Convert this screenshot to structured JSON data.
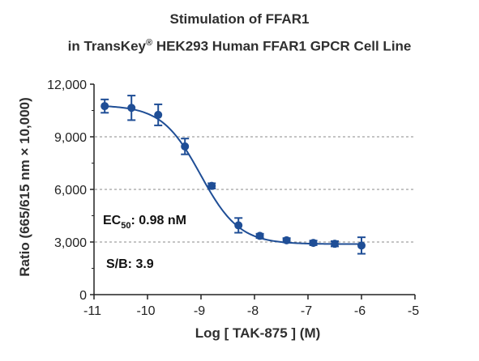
{
  "chart_data": {
    "type": "scatter",
    "title_line1": "Stimulation of  FFAR1",
    "title_line2_pre": "in TransKey",
    "title_line2_sup": "®",
    "title_line2_post": " HEK293 Human FFAR1 GPCR Cell Line",
    "xlabel": "Log [ TAK-875 ]  (M)",
    "ylabel": "Ratio (665/615 nm × 10,000)",
    "xlim": [
      -11,
      -5
    ],
    "ylim": [
      0,
      12000
    ],
    "xticks": [
      -11,
      -10,
      -9,
      -8,
      -7,
      -6,
      -5
    ],
    "xtick_labels": [
      "-11",
      "-10",
      "-9",
      "-8",
      "-7",
      "-6",
      "-5"
    ],
    "yticks": [
      0,
      3000,
      6000,
      9000,
      12000
    ],
    "ytick_labels": [
      "0",
      "3,000",
      "6,000",
      "9,000",
      "12,000"
    ],
    "grid": "horizontal dashed at 3,000 / 6,000 / 9,000",
    "series": [
      {
        "x": [
          -10.8,
          -10.3,
          -9.8,
          -9.3,
          -8.8,
          -8.3,
          -7.9,
          -7.4,
          -6.9,
          -6.5,
          -6.0
        ],
        "y": [
          10750,
          10650,
          10250,
          8450,
          6200,
          3950,
          3350,
          3100,
          2950,
          2900,
          2800
        ],
        "error": [
          380,
          700,
          600,
          450,
          150,
          420,
          120,
          120,
          130,
          150,
          470
        ]
      }
    ],
    "fit": {
      "model": "4PL",
      "top": 10800,
      "bottom": 2880,
      "logEC50": -9.009,
      "hill": 1.2
    },
    "annotations": {
      "ec50_prefix": "EC",
      "ec50_sub": "50",
      "ec50_value": ": 0.98 nM",
      "sb": "S/B: 3.9"
    },
    "colors": {
      "series": "#1f4e96",
      "axis": "#222222",
      "grid": "#8a8a8a"
    }
  }
}
